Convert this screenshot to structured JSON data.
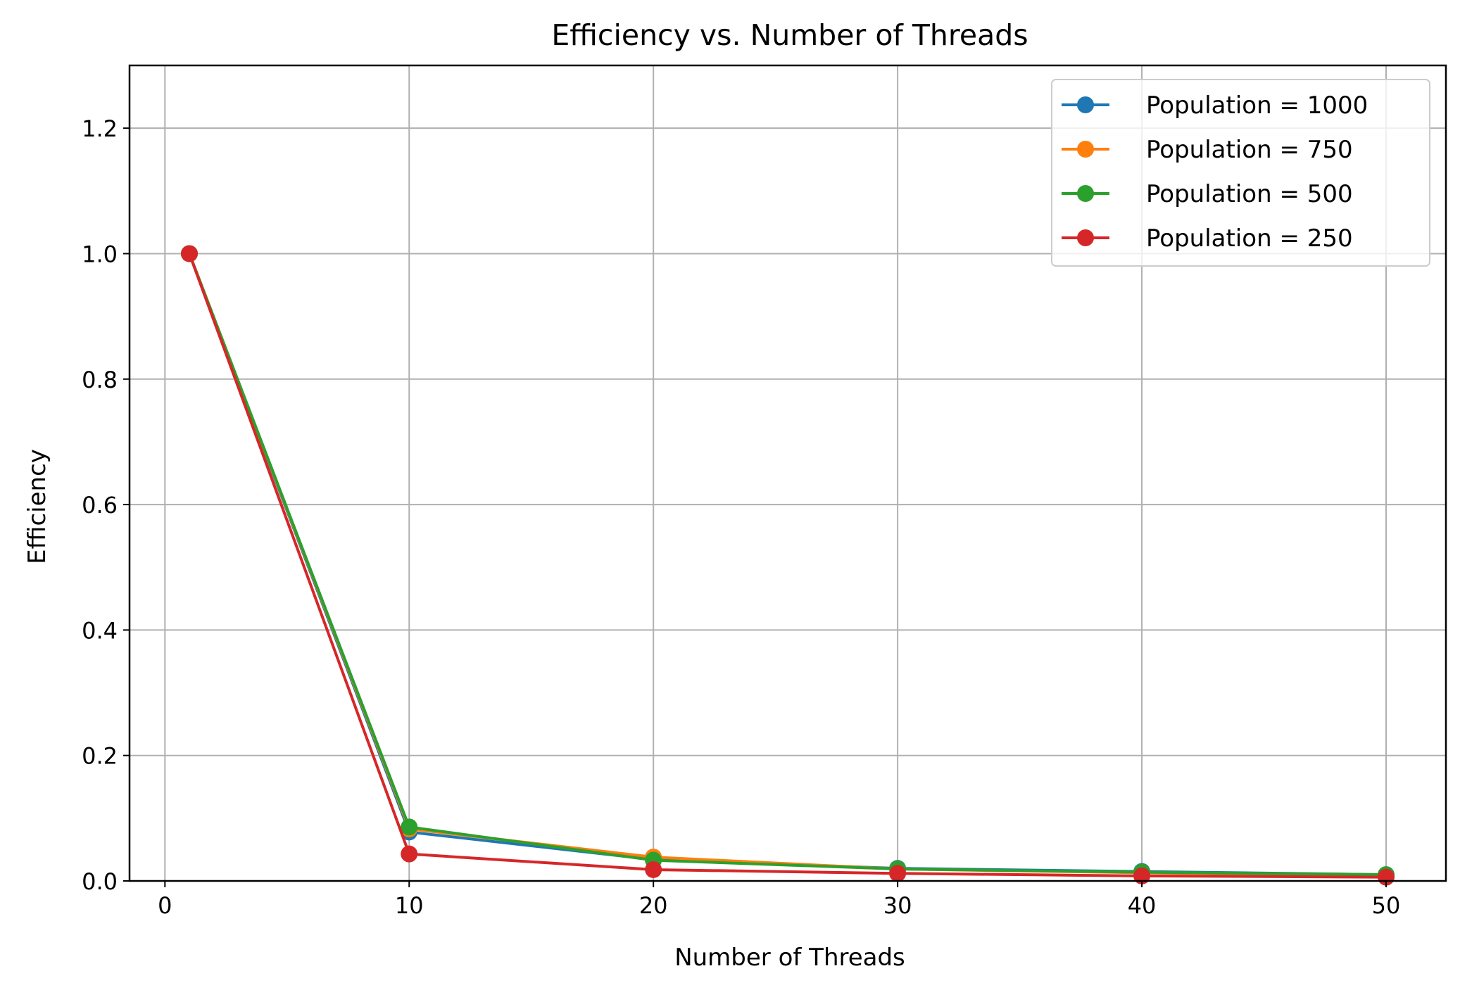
{
  "chart_data": {
    "type": "line",
    "title": "Efficiency vs. Number of Threads",
    "xlabel": "Number of Threads",
    "ylabel": "Efficiency",
    "x": [
      1,
      10,
      20,
      30,
      40,
      50
    ],
    "xlim": [
      -1.45,
      52.45
    ],
    "ylim": [
      0,
      1.3
    ],
    "xticks": [
      0,
      10,
      20,
      30,
      40,
      50
    ],
    "xtick_labels": [
      "0",
      "10",
      "20",
      "30",
      "40",
      "50"
    ],
    "yticks": [
      0.0,
      0.2,
      0.4,
      0.6,
      0.8,
      1.0,
      1.2
    ],
    "ytick_labels": [
      "0.0",
      "0.2",
      "0.4",
      "0.6",
      "0.8",
      "1.0",
      "1.2"
    ],
    "grid": true,
    "legend_position": "top-right",
    "series": [
      {
        "name": "Population = 1000",
        "color": "#1f77b4",
        "values": [
          1.0,
          0.078,
          0.034,
          0.02,
          0.015,
          0.01
        ]
      },
      {
        "name": "Population = 750",
        "color": "#ff7f0e",
        "values": [
          1.0,
          0.083,
          0.038,
          0.019,
          0.013,
          0.009
        ]
      },
      {
        "name": "Population = 500",
        "color": "#2ca02c",
        "values": [
          1.0,
          0.086,
          0.033,
          0.019,
          0.014,
          0.01
        ]
      },
      {
        "name": "Population = 250",
        "color": "#d62728",
        "values": [
          1.0,
          0.043,
          0.018,
          0.012,
          0.008,
          0.006
        ]
      }
    ]
  }
}
